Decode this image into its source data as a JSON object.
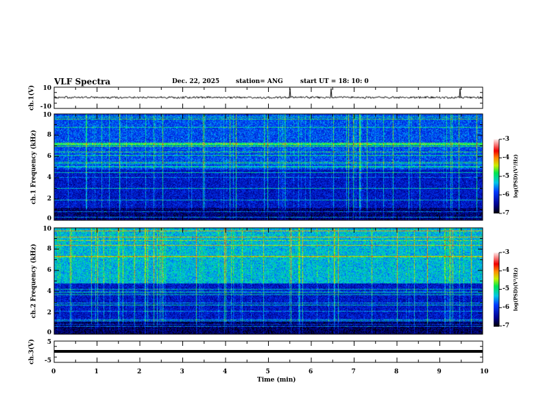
{
  "header": {
    "title": "VLF Spectra",
    "date": "Dec. 22, 2025",
    "station": "station= ANG",
    "start": "start  UT =   18: 10: 0"
  },
  "colors": {
    "background": "#ffffff",
    "axis": "#000000"
  },
  "chart_data": [
    {
      "type": "line",
      "name": "ch.1 waveform",
      "ylabel": "ch.1(V)",
      "ylim": [
        -10,
        10
      ],
      "yticks": [
        "10",
        "-10"
      ],
      "xlim": [
        0,
        10
      ],
      "baseline": 0
    },
    {
      "type": "heatmap",
      "name": "ch.1 spectrogram",
      "ylabel": "ch.1 Frequency (kHz)",
      "ylim": [
        0,
        10
      ],
      "yticks": [
        "0",
        "2",
        "4",
        "6",
        "8",
        "10"
      ],
      "xlim": [
        0,
        10
      ],
      "colorbar": {
        "label": "log(PSD)(V²/Hz)",
        "range": [
          -7,
          -3
        ],
        "ticks": [
          "-3",
          "-4",
          "-5",
          "-6",
          "-7"
        ]
      }
    },
    {
      "type": "heatmap",
      "name": "ch.2 spectrogram",
      "ylabel": "ch.2 Frequency (kHz)",
      "ylim": [
        0,
        10
      ],
      "yticks": [
        "0",
        "2",
        "4",
        "6",
        "8",
        "10"
      ],
      "xlim": [
        0,
        10
      ],
      "colorbar": {
        "label": "log(PSD)(V²/Hz)",
        "range": [
          -7,
          -3
        ],
        "ticks": [
          "-3",
          "-4",
          "-5",
          "-6",
          "-7"
        ]
      }
    },
    {
      "type": "line",
      "name": "ch.3 waveform",
      "ylabel": "ch.3(V)",
      "ylim": [
        -5,
        5
      ],
      "yticks": [
        "5",
        "-5"
      ],
      "xlim": [
        0,
        10
      ],
      "constant_value": 0
    },
    {
      "xlabel": "Time (min)",
      "xticks": [
        "0",
        "1",
        "2",
        "3",
        "4",
        "5",
        "6",
        "7",
        "8",
        "9",
        "10"
      ]
    }
  ]
}
